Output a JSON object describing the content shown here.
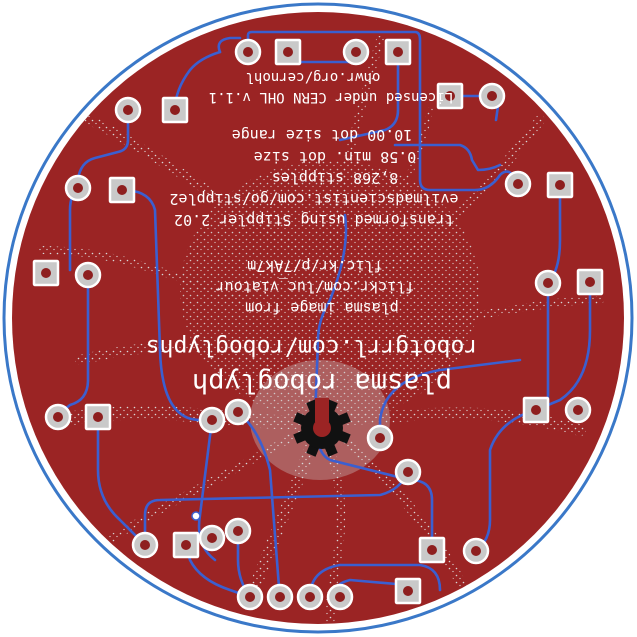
{
  "colors": {
    "background": "#ffffff",
    "board_outline": "#3a78c8",
    "board_fill": "#9b2424",
    "plasma": "#cfcfcf",
    "trace": "#3b5fd0",
    "pad_fill": "#c9c9c9",
    "pad_ring": "#ffffff",
    "pad_hole": "#8e1f1f",
    "silkscreen": "#ffffff",
    "gear": "#111111"
  },
  "silkscreen_text": {
    "title": "plasma roboglyph",
    "url": "robotgrrl.com/roboglyphs",
    "credit_1": "plasma image from",
    "credit_2": "flickr.com/luc_viatour",
    "credit_3": "flic.kr/p/7Ak7m",
    "transform_1": "transformed using Stippler 2.02",
    "transform_2": "evilmadscientist.com/go/stipple2",
    "stipples": "8,268 stipples",
    "dot_min": "0.58 min. dot size",
    "dot_range": "10.00 dot size range",
    "license_1": "Licensed under CERN OHL v.1.1",
    "license_2": "ohwr.org/cernohl"
  },
  "icons": {
    "hardware_mark": "open-hardware-gear-icon"
  },
  "pads": [
    {
      "shape": "square",
      "label": ""
    }
  ]
}
